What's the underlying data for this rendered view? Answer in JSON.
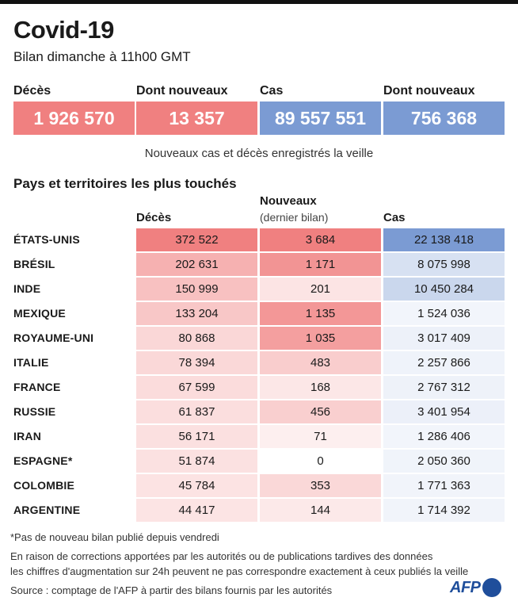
{
  "title": "Covid-19",
  "subtitle": "Bilan dimanche à 11h00 GMT",
  "colors": {
    "deaths": "#f08080",
    "cases": "#7b9bd3",
    "zero": "#ffffff"
  },
  "summary": [
    {
      "label": "Décès",
      "value": "1 926 570",
      "color": "#f08080"
    },
    {
      "label": "Dont nouveaux",
      "value": "13 357",
      "color": "#f08080"
    },
    {
      "label": "Cas",
      "value": "89 557 551",
      "color": "#7b9bd3"
    },
    {
      "label": "Dont nouveaux",
      "value": "756 368",
      "color": "#7b9bd3"
    }
  ],
  "summary_note": "Nouveaux cas et décès enregistrés la veille",
  "section_title": "Pays et territoires les plus touchés",
  "columns": {
    "deaths": "Décès",
    "new": "Nouveaux",
    "new_sub": "(dernier bilan)",
    "cases": "Cas"
  },
  "chart_data": {
    "type": "table",
    "title": "Pays et territoires les plus touchés",
    "columns": [
      "Décès",
      "Nouveaux (dernier bilan)",
      "Cas"
    ],
    "rows": [
      {
        "country": "ÉTATS-UNIS",
        "deaths": 372522,
        "new": 3684,
        "cases": 22138418,
        "deaths_label": "372 522",
        "new_label": "3 684",
        "cases_label": "22 138 418"
      },
      {
        "country": "BRÉSIL",
        "deaths": 202631,
        "new": 1171,
        "cases": 8075998,
        "deaths_label": "202 631",
        "new_label": "1 171",
        "cases_label": "8 075 998"
      },
      {
        "country": "INDE",
        "deaths": 150999,
        "new": 201,
        "cases": 10450284,
        "deaths_label": "150 999",
        "new_label": "201",
        "cases_label": "10 450 284"
      },
      {
        "country": "MEXIQUE",
        "deaths": 133204,
        "new": 1135,
        "cases": 1524036,
        "deaths_label": "133 204",
        "new_label": "1 135",
        "cases_label": "1 524 036"
      },
      {
        "country": "ROYAUME-UNI",
        "deaths": 80868,
        "new": 1035,
        "cases": 3017409,
        "deaths_label": "80 868",
        "new_label": "1 035",
        "cases_label": "3 017 409"
      },
      {
        "country": "ITALIE",
        "deaths": 78394,
        "new": 483,
        "cases": 2257866,
        "deaths_label": "78 394",
        "new_label": "483",
        "cases_label": "2 257 866"
      },
      {
        "country": "FRANCE",
        "deaths": 67599,
        "new": 168,
        "cases": 2767312,
        "deaths_label": "67 599",
        "new_label": "168",
        "cases_label": "2 767 312"
      },
      {
        "country": "RUSSIE",
        "deaths": 61837,
        "new": 456,
        "cases": 3401954,
        "deaths_label": "61 837",
        "new_label": "456",
        "cases_label": "3 401 954"
      },
      {
        "country": "IRAN",
        "deaths": 56171,
        "new": 71,
        "cases": 1286406,
        "deaths_label": "56 171",
        "new_label": "71",
        "cases_label": "1 286 406"
      },
      {
        "country": "ESPAGNE*",
        "deaths": 51874,
        "new": 0,
        "cases": 2050360,
        "deaths_label": "51 874",
        "new_label": "0",
        "cases_label": "2 050 360"
      },
      {
        "country": "COLOMBIE",
        "deaths": 45784,
        "new": 353,
        "cases": 1771363,
        "deaths_label": "45 784",
        "new_label": "353",
        "cases_label": "1 771 363"
      },
      {
        "country": "ARGENTINE",
        "deaths": 44417,
        "new": 144,
        "cases": 1714392,
        "deaths_label": "44 417",
        "new_label": "144",
        "cases_label": "1 714 392"
      }
    ]
  },
  "footnotes": {
    "asterisk": "*Pas de nouveau bilan publié depuis vendredi",
    "line1": "En raison de corrections apportées par les autorités ou de publications tardives des données",
    "line2": "les chiffres d'augmentation sur 24h peuvent ne pas correspondre exactement à ceux publiés la veille",
    "source": "Source : comptage de l'AFP à partir des bilans fournis par les autorités"
  },
  "logo": "AFP"
}
